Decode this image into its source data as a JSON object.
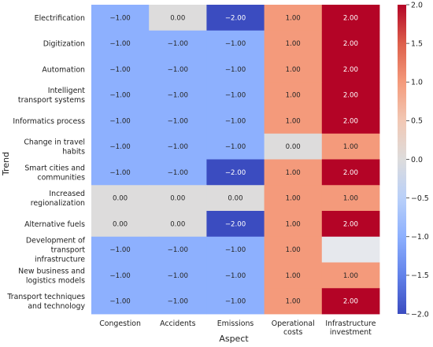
{
  "chart_data": {
    "type": "heatmap",
    "xlabel": "Aspect",
    "ylabel": "Trend",
    "columns": [
      "Congestion",
      "Accidents",
      "Emissions",
      "Operational\ncosts",
      "Infrastructure\ninvestment"
    ],
    "rows": [
      "Electrification",
      "Digitization",
      "Automation",
      "Intelligent\ntransport systems",
      "Informatics process",
      "Change in travel\nhabits",
      "Smart cities and\ncommunities",
      "Increased\nregionalization",
      "Alternative fuels",
      "Development of\ntransport\ninfrastructure",
      "New business and\nlogistics models",
      "Transport techniques\nand technology"
    ],
    "values": [
      [
        -1,
        0,
        -2,
        1,
        2
      ],
      [
        -1,
        -1,
        -1,
        1,
        2
      ],
      [
        -1,
        -1,
        -1,
        1,
        2
      ],
      [
        -1,
        -1,
        -1,
        1,
        2
      ],
      [
        -1,
        -1,
        -1,
        1,
        2
      ],
      [
        -1,
        -1,
        -1,
        0,
        1
      ],
      [
        -1,
        -1,
        -2,
        1,
        2
      ],
      [
        0,
        0,
        0,
        1,
        1
      ],
      [
        0,
        0,
        -2,
        1,
        2
      ],
      [
        -1,
        -1,
        -1,
        1,
        null
      ],
      [
        -1,
        -1,
        -1,
        1,
        1
      ],
      [
        -1,
        -1,
        -1,
        1,
        2
      ]
    ],
    "cell_labels": [
      [
        "−1.00",
        "0.00",
        "−2.00",
        "1.00",
        "2.00"
      ],
      [
        "−1.00",
        "−1.00",
        "−1.00",
        "1.00",
        "2.00"
      ],
      [
        "−1.00",
        "−1.00",
        "−1.00",
        "1.00",
        "2.00"
      ],
      [
        "−1.00",
        "−1.00",
        "−1.00",
        "1.00",
        "2.00"
      ],
      [
        "−1.00",
        "−1.00",
        "−1.00",
        "1.00",
        "2.00"
      ],
      [
        "−1.00",
        "−1.00",
        "−1.00",
        "0.00",
        "1.00"
      ],
      [
        "−1.00",
        "−1.00",
        "−2.00",
        "1.00",
        "2.00"
      ],
      [
        "0.00",
        "0.00",
        "0.00",
        "1.00",
        "1.00"
      ],
      [
        "0.00",
        "0.00",
        "−2.00",
        "1.00",
        "2.00"
      ],
      [
        "−1.00",
        "−1.00",
        "−1.00",
        "1.00",
        ""
      ],
      [
        "−1.00",
        "−1.00",
        "−1.00",
        "1.00",
        "1.00"
      ],
      [
        "−1.00",
        "−1.00",
        "−1.00",
        "1.00",
        "2.00"
      ]
    ],
    "colormap": "coolwarm",
    "vmin": -2,
    "vmax": 2,
    "missing_color": "#e6e8ed",
    "colorbar": {
      "ticks": [
        2.0,
        1.5,
        1.0,
        0.5,
        0.0,
        -0.5,
        -1.0,
        -1.5,
        -2.0
      ],
      "tick_labels": [
        "2.0",
        "1.5",
        "1.0",
        "0.5",
        "0.0",
        "−0.5",
        "−1.0",
        "−1.5",
        "−2.0"
      ]
    },
    "colors": {
      "-2": "#3b4cc0",
      "-1": "#8db0fe",
      "0": "#dddcdc",
      "1": "#f49a7b",
      "2": "#b40426"
    }
  }
}
